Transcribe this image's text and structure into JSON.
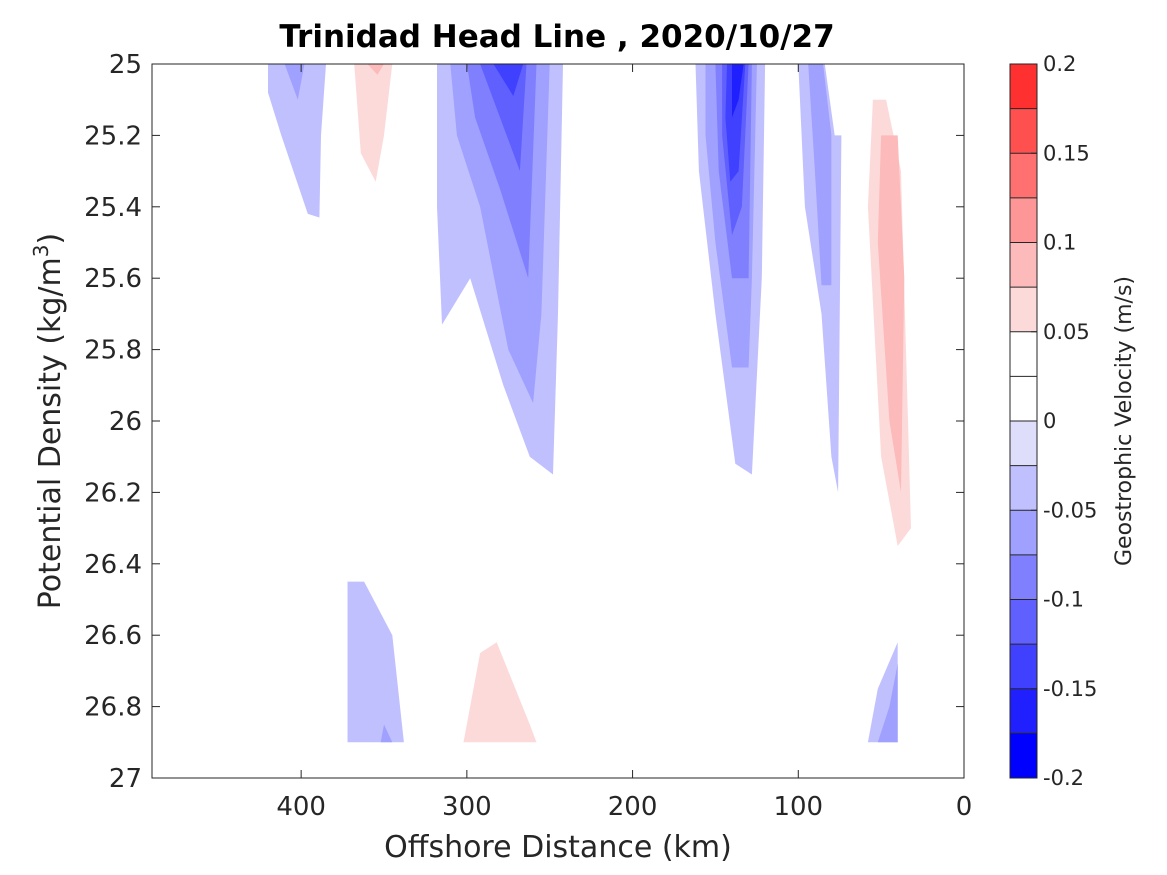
{
  "chart_data": {
    "type": "contour",
    "title": "Trinidad Head Line , 2020/10/27",
    "xlabel": "Offshore Distance (km)",
    "ylabel": "Potential Density (kg/m",
    "ylabel_sup": "3",
    "ylabel_close": ")",
    "xlim": [
      490,
      0
    ],
    "ylim": [
      25,
      27
    ],
    "xticks": [
      400,
      300,
      200,
      100,
      0
    ],
    "xtick_labels": [
      "400",
      "300",
      "200",
      "100",
      "0"
    ],
    "yticks": [
      25,
      25.2,
      25.4,
      25.6,
      25.8,
      26,
      26.2,
      26.4,
      26.6,
      26.8,
      27
    ],
    "ytick_labels": [
      "25",
      "25.2",
      "25.4",
      "25.6",
      "25.8",
      "26",
      "26.2",
      "26.4",
      "26.6",
      "26.8",
      "27"
    ],
    "colorbar": {
      "label": "Geostrophic Velocity (m/s)",
      "range": [
        -0.2,
        0.2
      ],
      "levels": [
        -0.2,
        -0.175,
        -0.15,
        -0.125,
        -0.1,
        -0.075,
        -0.05,
        -0.025,
        0,
        0.025,
        0.05,
        0.075,
        0.1,
        0.125,
        0.15,
        0.175,
        0.2
      ],
      "colors": [
        "#0000ff",
        "#2020ff",
        "#4040ff",
        "#6060ff",
        "#8080ff",
        "#a0a0ff",
        "#c0c0ff",
        "#dedefb",
        "#ffffff",
        "#ffffff",
        "#fddada",
        "#fdbaba",
        "#fd9696",
        "#ff7070",
        "#ff5050",
        "#ff3030",
        "#ff0000"
      ],
      "tick_values": [
        0.2,
        0.15,
        0.1,
        0.05,
        0,
        -0.05,
        -0.1,
        -0.15,
        -0.2
      ],
      "tick_labels": [
        "0.2",
        "0.15",
        "0.1",
        "0.05",
        "0",
        "-0.05",
        "-0.1",
        "-0.15",
        "-0.2"
      ]
    },
    "regions": [
      {
        "name": "neg-400km-upper",
        "level": -0.025,
        "points": [
          [
            420,
            25
          ],
          [
            385,
            25
          ],
          [
            388,
            25.2
          ],
          [
            389,
            25.43
          ],
          [
            396,
            25.42
          ],
          [
            412,
            25.2
          ],
          [
            420,
            25.08
          ]
        ]
      },
      {
        "name": "neg-400km-upper-core",
        "level": -0.05,
        "points": [
          [
            410,
            25
          ],
          [
            398,
            25
          ],
          [
            402,
            25.1
          ]
        ]
      },
      {
        "name": "pos-360km-upper",
        "level": 0.025,
        "points": [
          [
            372,
            25
          ],
          [
            338,
            25
          ],
          [
            345,
            25.3
          ],
          [
            356,
            25.6
          ],
          [
            368,
            25.5
          ],
          [
            372,
            25.25
          ]
        ]
      },
      {
        "name": "pos-360km-upper-core",
        "level": 0.05,
        "points": [
          [
            368,
            25
          ],
          [
            345,
            25
          ],
          [
            350,
            25.2
          ],
          [
            355,
            25.33
          ],
          [
            364,
            25.25
          ]
        ]
      },
      {
        "name": "pos-360km-top-core",
        "level": 0.075,
        "points": [
          [
            360,
            25
          ],
          [
            350,
            25
          ],
          [
            354,
            25.03
          ]
        ]
      },
      {
        "name": "neg-280km-main",
        "level": -0.025,
        "points": [
          [
            318,
            25
          ],
          [
            242,
            25
          ],
          [
            245,
            25.7
          ],
          [
            248,
            26.15
          ],
          [
            262,
            26.1
          ],
          [
            278,
            25.9
          ],
          [
            298,
            25.6
          ],
          [
            315,
            25.73
          ],
          [
            318,
            25.4
          ]
        ]
      },
      {
        "name": "neg-280km-mid",
        "level": -0.05,
        "points": [
          [
            310,
            25
          ],
          [
            250,
            25
          ],
          [
            255,
            25.7
          ],
          [
            260,
            25.95
          ],
          [
            275,
            25.8
          ],
          [
            292,
            25.4
          ],
          [
            306,
            25.2
          ]
        ]
      },
      {
        "name": "neg-280km-inner",
        "level": -0.075,
        "points": [
          [
            300,
            25
          ],
          [
            258,
            25
          ],
          [
            263,
            25.6
          ],
          [
            280,
            25.35
          ],
          [
            295,
            25.15
          ]
        ]
      },
      {
        "name": "neg-280km-core",
        "level": -0.1,
        "points": [
          [
            292,
            25
          ],
          [
            264,
            25
          ],
          [
            268,
            25.3
          ],
          [
            280,
            25.15
          ]
        ]
      },
      {
        "name": "neg-280km-deep",
        "level": -0.125,
        "points": [
          [
            284,
            25
          ],
          [
            266,
            25
          ],
          [
            272,
            25.09
          ]
        ]
      },
      {
        "name": "pos-200km-upper",
        "level": 0.025,
        "points": [
          [
            210,
            25
          ],
          [
            180,
            25
          ],
          [
            190,
            25.2
          ],
          [
            197,
            25.25
          ],
          [
            205,
            25.12
          ]
        ]
      },
      {
        "name": "neg-140km-main",
        "level": -0.025,
        "points": [
          [
            162,
            25
          ],
          [
            120,
            25
          ],
          [
            122,
            25.6
          ],
          [
            128,
            26.15
          ],
          [
            138,
            26.12
          ],
          [
            150,
            25.7
          ],
          [
            160,
            25.3
          ]
        ]
      },
      {
        "name": "neg-140km-mid",
        "level": -0.05,
        "points": [
          [
            156,
            25
          ],
          [
            125,
            25
          ],
          [
            128,
            25.6
          ],
          [
            130,
            25.85
          ],
          [
            140,
            25.85
          ],
          [
            150,
            25.5
          ],
          [
            156,
            25.2
          ]
        ]
      },
      {
        "name": "neg-140km-inner",
        "level": -0.075,
        "points": [
          [
            150,
            25
          ],
          [
            128,
            25
          ],
          [
            130,
            25.6
          ],
          [
            140,
            25.6
          ],
          [
            148,
            25.3
          ]
        ]
      },
      {
        "name": "neg-140km-core",
        "level": -0.1,
        "points": [
          [
            146,
            25
          ],
          [
            130,
            25
          ],
          [
            134,
            25.4
          ],
          [
            140,
            25.48
          ],
          [
            146,
            25.2
          ]
        ]
      },
      {
        "name": "neg-140km-deep",
        "level": -0.125,
        "points": [
          [
            143,
            25
          ],
          [
            132,
            25
          ],
          [
            136,
            25.3
          ],
          [
            141,
            25.33
          ],
          [
            144,
            25.15
          ]
        ]
      },
      {
        "name": "neg-140km-max",
        "level": -0.15,
        "points": [
          [
            140,
            25
          ],
          [
            133,
            25
          ],
          [
            136,
            25.1
          ],
          [
            140,
            25.15
          ]
        ]
      },
      {
        "name": "neg-85km",
        "level": -0.025,
        "points": [
          [
            100,
            25
          ],
          [
            84,
            25
          ],
          [
            78,
            25.2
          ],
          [
            74,
            25.2
          ],
          [
            76,
            26.2
          ],
          [
            80,
            26.1
          ],
          [
            86,
            25.7
          ],
          [
            96,
            25.4
          ]
        ]
      },
      {
        "name": "neg-85km-inner",
        "level": -0.05,
        "points": [
          [
            94,
            25
          ],
          [
            85,
            25
          ],
          [
            80,
            25.2
          ],
          [
            80,
            25.62
          ],
          [
            86,
            25.62
          ],
          [
            90,
            25.3
          ]
        ]
      },
      {
        "name": "pos-45km-main",
        "level": 0.025,
        "points": [
          [
            58,
            25.2
          ],
          [
            44,
            25.2
          ],
          [
            35,
            25.4
          ],
          [
            28,
            26.3
          ],
          [
            40,
            26.45
          ],
          [
            47,
            26.5
          ],
          [
            55,
            26.4
          ],
          [
            62,
            25.5
          ]
        ]
      },
      {
        "name": "pos-45km-mid",
        "level": 0.05,
        "points": [
          [
            55,
            25.1
          ],
          [
            47,
            25.1
          ],
          [
            38,
            25.3
          ],
          [
            32,
            26.3
          ],
          [
            40,
            26.35
          ],
          [
            50,
            26.1
          ],
          [
            58,
            25.4
          ]
        ]
      },
      {
        "name": "pos-45km-core",
        "level": 0.075,
        "points": [
          [
            50,
            25.2
          ],
          [
            40,
            25.2
          ],
          [
            36,
            25.6
          ],
          [
            38,
            26.2
          ],
          [
            45,
            26.0
          ],
          [
            52,
            25.5
          ]
        ]
      },
      {
        "name": "neg-360km-deep",
        "level": -0.025,
        "points": [
          [
            372,
            26.45
          ],
          [
            362,
            26.45
          ],
          [
            345,
            26.6
          ],
          [
            338,
            26.9
          ],
          [
            372,
            26.9
          ]
        ]
      },
      {
        "name": "neg-360km-deep-core",
        "level": -0.05,
        "points": [
          [
            350,
            26.85
          ],
          [
            345,
            26.9
          ],
          [
            352,
            26.9
          ]
        ]
      },
      {
        "name": "pos-410km-deep",
        "level": 0.025,
        "points": [
          [
            412,
            26.85
          ],
          [
            398,
            26.88
          ],
          [
            398,
            26.9
          ],
          [
            412,
            26.9
          ]
        ]
      },
      {
        "name": "pos-280km-deep",
        "level": 0.025,
        "points": [
          [
            313,
            26.9
          ],
          [
            300,
            26.45
          ],
          [
            288,
            26.25
          ],
          [
            260,
            26.6
          ],
          [
            245,
            26.9
          ],
          [
            244,
            26.95
          ],
          [
            260,
            26.9
          ]
        ]
      },
      {
        "name": "pos-280km-deep-core",
        "level": 0.05,
        "points": [
          [
            302,
            26.9
          ],
          [
            292,
            26.65
          ],
          [
            282,
            26.62
          ],
          [
            262,
            26.85
          ],
          [
            258,
            26.9
          ]
        ]
      },
      {
        "name": "pos-140km-deep",
        "level": 0.025,
        "points": [
          [
            158,
            26.9
          ],
          [
            148,
            26.7
          ],
          [
            138,
            26.67
          ],
          [
            128,
            26.85
          ],
          [
            120,
            27
          ],
          [
            126,
            27
          ],
          [
            132,
            26.9
          ]
        ]
      },
      {
        "name": "pos-80km-deep",
        "level": 0.025,
        "points": [
          [
            80,
            26.93
          ],
          [
            77,
            26.93
          ],
          [
            78,
            27
          ],
          [
            82,
            27
          ]
        ]
      },
      {
        "name": "neg-40km-deep",
        "level": -0.025,
        "points": [
          [
            58,
            26.9
          ],
          [
            52,
            26.75
          ],
          [
            40,
            26.62
          ],
          [
            40,
            26.9
          ]
        ]
      },
      {
        "name": "neg-40km-deep-core",
        "level": -0.05,
        "points": [
          [
            52,
            26.9
          ],
          [
            45,
            26.8
          ],
          [
            40,
            26.68
          ],
          [
            40,
            26.9
          ]
        ]
      }
    ]
  }
}
